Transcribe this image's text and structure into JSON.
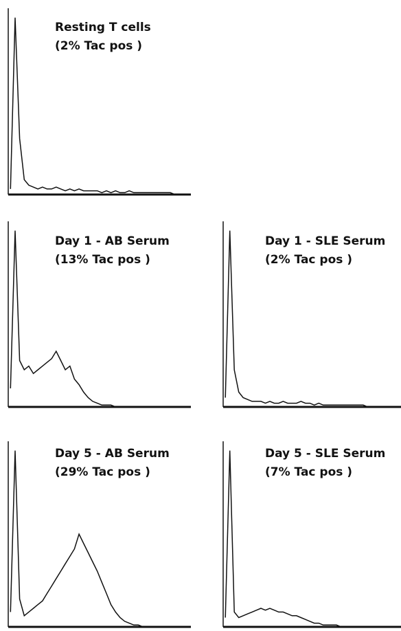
{
  "chart_data": [
    {
      "type": "line",
      "title": "Resting T cells",
      "subtitle": "(2% Tac pos )",
      "ylim": [
        0,
        100
      ],
      "values": [
        3,
        95,
        30,
        8,
        5,
        4,
        3,
        4,
        3,
        3,
        4,
        3,
        2,
        3,
        2,
        3,
        2,
        2,
        2,
        2,
        1,
        2,
        1,
        2,
        1,
        1,
        2,
        1,
        1,
        1,
        1,
        1,
        1,
        1,
        1,
        1,
        0,
        0,
        0,
        0
      ]
    },
    {
      "type": "line",
      "title": "Day 1 - AB Serum",
      "subtitle": "(13% Tac pos )",
      "ylim": [
        0,
        100
      ],
      "values": [
        10,
        95,
        25,
        20,
        22,
        18,
        20,
        22,
        24,
        26,
        30,
        25,
        20,
        22,
        15,
        12,
        8,
        5,
        3,
        2,
        1,
        1,
        1,
        0,
        0,
        0,
        0,
        0,
        0,
        0,
        0,
        0,
        0,
        0,
        0,
        0,
        0,
        0,
        0,
        0
      ]
    },
    {
      "type": "line",
      "title": "Day 1 - SLE Serum",
      "subtitle": "(2% Tac pos )",
      "ylim": [
        0,
        100
      ],
      "values": [
        5,
        95,
        20,
        8,
        5,
        4,
        3,
        3,
        3,
        2,
        3,
        2,
        2,
        3,
        2,
        2,
        2,
        3,
        2,
        2,
        1,
        2,
        1,
        1,
        1,
        1,
        1,
        1,
        1,
        1,
        1,
        1,
        0,
        0,
        0,
        0,
        0,
        0,
        0,
        0
      ]
    },
    {
      "type": "line",
      "title": "Day 5 - AB Serum",
      "subtitle": "(29% Tac pos )",
      "ylim": [
        0,
        100
      ],
      "values": [
        8,
        95,
        15,
        6,
        8,
        10,
        12,
        14,
        18,
        22,
        26,
        30,
        34,
        38,
        42,
        50,
        45,
        40,
        35,
        30,
        24,
        18,
        12,
        8,
        5,
        3,
        2,
        1,
        1,
        0,
        0,
        0,
        0,
        0,
        0,
        0,
        0,
        0,
        0,
        0
      ]
    },
    {
      "type": "line",
      "title": "Day 5 - SLE Serum",
      "subtitle": "(7% Tac pos )",
      "ylim": [
        0,
        100
      ],
      "values": [
        5,
        95,
        8,
        5,
        6,
        7,
        8,
        9,
        10,
        9,
        10,
        9,
        8,
        8,
        7,
        6,
        6,
        5,
        4,
        3,
        2,
        2,
        1,
        1,
        1,
        1,
        0,
        0,
        0,
        0,
        0,
        0,
        0,
        0,
        0,
        0,
        0,
        0,
        0,
        0
      ]
    }
  ]
}
